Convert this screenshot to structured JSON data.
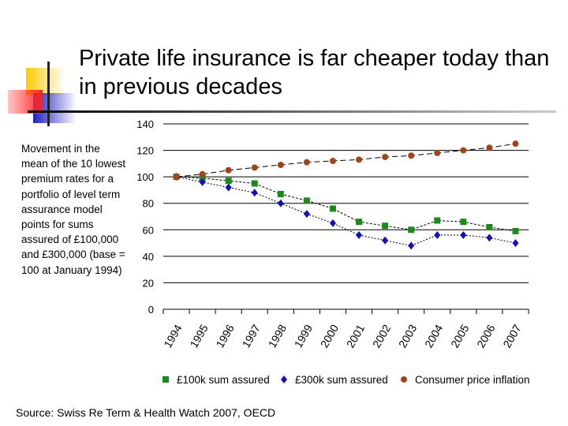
{
  "title": "Private life insurance is far cheaper today than in previous decades",
  "side_note": "Movement in the mean of the 10 lowest premium rates for a portfolio of level term assurance model points for sums assured of £100,000 and £300,000 (base = 100 at January 1994)",
  "source": "Source: Swiss Re Term & Health Watch 2007, OECD",
  "chart_data": {
    "type": "line",
    "categories": [
      "1994",
      "1995",
      "1996",
      "1997",
      "1998",
      "1999",
      "2000",
      "2001",
      "2002",
      "2003",
      "2004",
      "2005",
      "2006",
      "2007"
    ],
    "ylim": [
      0,
      140
    ],
    "yticks": [
      "0",
      "20",
      "40",
      "60",
      "80",
      "100",
      "120",
      "140"
    ],
    "grid": true,
    "legend_placement": "bottom",
    "series": [
      {
        "name": "£100k sum assured",
        "color": "#1a8a1a",
        "marker": "square",
        "values": [
          100,
          99,
          97,
          95,
          87,
          82,
          76,
          66,
          63,
          60,
          67,
          66,
          62,
          59
        ]
      },
      {
        "name": "£300k sum assured",
        "color": "#1010c0",
        "marker": "diamond",
        "values": [
          100,
          96,
          92,
          88,
          80,
          72,
          65,
          56,
          52,
          48,
          56,
          56,
          54,
          50
        ]
      },
      {
        "name": "Consumer price inflation",
        "color": "#a0441c",
        "marker": "circle",
        "values": [
          100,
          102,
          105,
          107,
          109,
          111,
          112,
          113,
          115,
          116,
          118,
          120,
          122,
          125
        ]
      }
    ]
  }
}
